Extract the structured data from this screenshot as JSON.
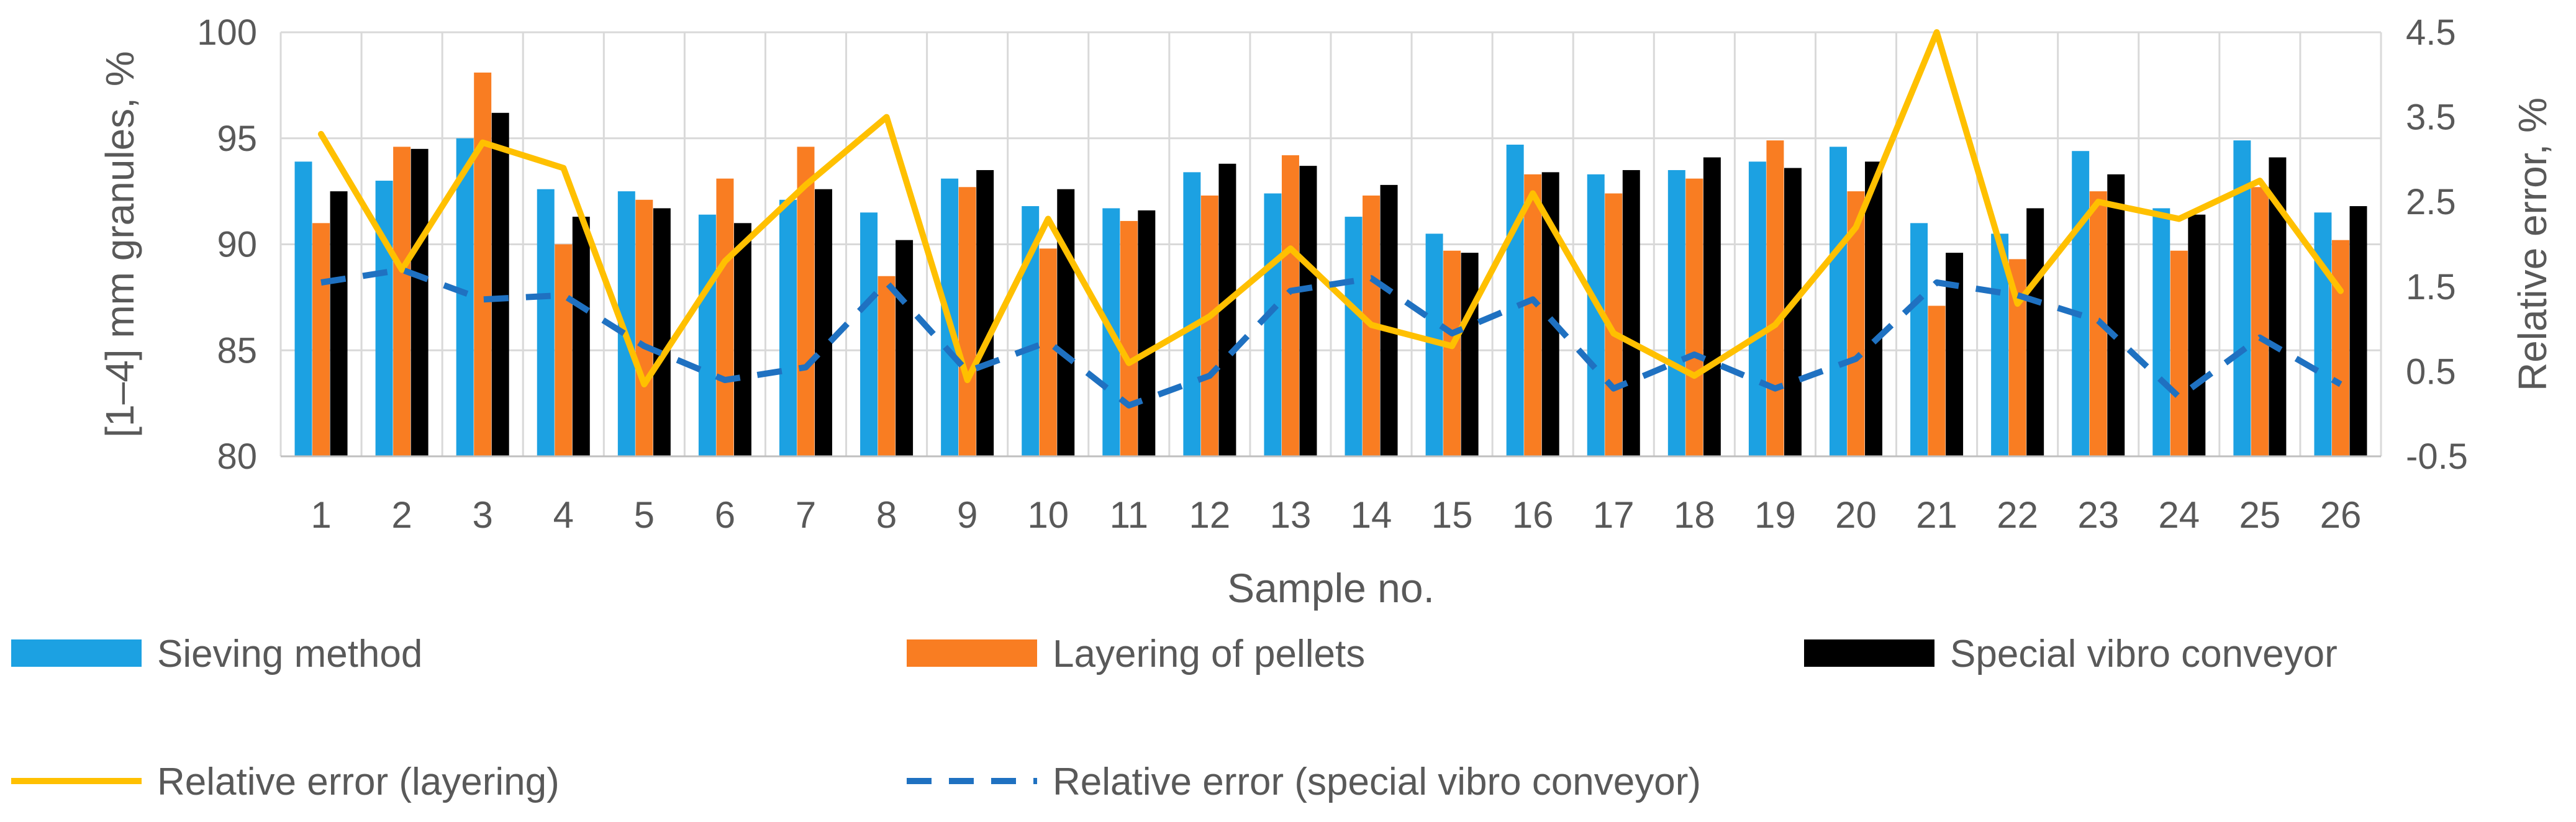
{
  "chart_data": {
    "type": "bar",
    "title": "",
    "xlabel": "Sample no.",
    "ylabel": "[1–4] mm granules, %",
    "y2label": "Relative error, %",
    "ylim": [
      80,
      100
    ],
    "y2lim": [
      -0.5,
      4.5
    ],
    "yticks": [
      "80",
      "85",
      "90",
      "95",
      "100"
    ],
    "y2ticks": [
      "-0.5",
      "0.5",
      "1.5",
      "2.5",
      "3.5",
      "4.5"
    ],
    "grid": true,
    "legend_position": "bottom",
    "categories": [
      "1",
      "2",
      "3",
      "4",
      "5",
      "6",
      "7",
      "8",
      "9",
      "10",
      "11",
      "12",
      "13",
      "14",
      "15",
      "16",
      "17",
      "18",
      "19",
      "20",
      "21",
      "22",
      "23",
      "24",
      "25",
      "26"
    ],
    "series": [
      {
        "name": "Sieving method",
        "kind": "bar",
        "axis": "left",
        "color": "#1CA1E2",
        "values": [
          93.9,
          93.0,
          95.0,
          92.6,
          92.5,
          91.4,
          92.1,
          91.5,
          93.1,
          91.8,
          91.7,
          93.4,
          92.4,
          91.3,
          90.5,
          94.7,
          93.3,
          93.5,
          93.9,
          94.6,
          91.0,
          90.5,
          94.4,
          91.7,
          94.9,
          91.5
        ]
      },
      {
        "name": "Layering of pellets",
        "kind": "bar",
        "axis": "left",
        "color": "#F97D22",
        "values": [
          91.0,
          94.6,
          98.1,
          90.0,
          92.1,
          93.1,
          94.6,
          88.5,
          92.7,
          89.8,
          91.1,
          92.3,
          94.2,
          92.3,
          89.7,
          93.3,
          92.4,
          93.1,
          94.9,
          92.5,
          87.1,
          89.3,
          92.5,
          89.7,
          92.7,
          90.2
        ]
      },
      {
        "name": "Special vibro conveyor",
        "kind": "bar",
        "axis": "left",
        "color": "#000000",
        "values": [
          92.5,
          94.5,
          96.2,
          91.3,
          91.7,
          91.0,
          92.6,
          90.2,
          93.5,
          92.6,
          91.6,
          93.8,
          93.7,
          92.8,
          89.6,
          93.4,
          93.5,
          94.1,
          93.6,
          93.9,
          89.6,
          91.7,
          93.3,
          91.4,
          94.1,
          91.8
        ]
      },
      {
        "name": "Relative error (layering)",
        "kind": "line",
        "axis": "right",
        "color": "#FFC000",
        "dash": "solid",
        "values": [
          3.3,
          1.7,
          3.2,
          2.9,
          0.35,
          1.8,
          2.7,
          3.5,
          0.4,
          2.3,
          0.6,
          1.15,
          1.95,
          1.05,
          0.8,
          2.6,
          0.95,
          0.45,
          1.05,
          2.2,
          4.5,
          1.3,
          2.5,
          2.3,
          2.75,
          1.45
        ]
      },
      {
        "name": "Relative error (special vibro conveyor)",
        "kind": "line",
        "axis": "right",
        "color": "#1F71C1",
        "dash": "dashed",
        "values": [
          1.55,
          1.7,
          1.35,
          1.4,
          0.8,
          0.4,
          0.55,
          1.55,
          0.5,
          0.85,
          0.1,
          0.45,
          1.45,
          1.6,
          0.95,
          1.35,
          0.3,
          0.7,
          0.3,
          0.65,
          1.55,
          1.4,
          1.1,
          0.2,
          0.9,
          0.35
        ]
      }
    ]
  }
}
